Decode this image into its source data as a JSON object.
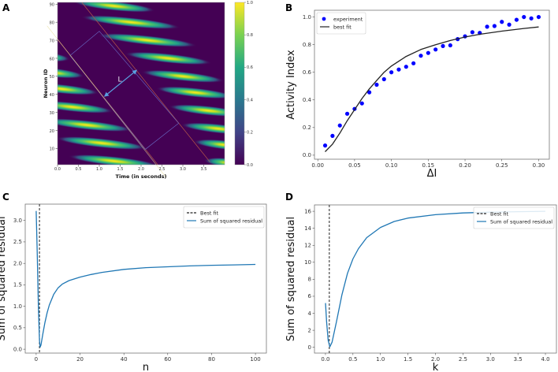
{
  "chart_data": [
    {
      "panel": "A",
      "type": "heatmap",
      "xlabel": "Time (in seconds)",
      "ylabel": "Neuron ID",
      "xlim": [
        0,
        4.0
      ],
      "ylim": [
        1,
        91
      ],
      "xticks": [
        "0.0",
        "0.5",
        "1.0",
        "1.5",
        "2.0",
        "2.5",
        "3.0",
        "3.5"
      ],
      "xtick_values": [
        0,
        0.5,
        1,
        1.5,
        2,
        2.5,
        3,
        3.5
      ],
      "yticks": [
        "10",
        "20",
        "30",
        "40",
        "50",
        "60",
        "70",
        "80",
        "90"
      ],
      "ytick_values": [
        10,
        20,
        30,
        40,
        50,
        60,
        70,
        80,
        90
      ],
      "colorbar": {
        "ticks": [
          "0.0",
          "0.2",
          "0.4",
          "0.6",
          "0.8",
          "1.0"
        ],
        "values": [
          0,
          0.2,
          0.4,
          0.6,
          0.8,
          1.0
        ],
        "range": [
          0,
          1
        ]
      },
      "activity_bands": [
        {
          "time": 1.35,
          "neuron": 89,
          "half_width": 1.0
        },
        {
          "time": 1.75,
          "neuron": 80,
          "half_width": 1.2
        },
        {
          "time": 2.15,
          "neuron": 70,
          "half_width": 1.2
        },
        {
          "time": 2.65,
          "neuron": 60,
          "half_width": 1.05
        },
        {
          "time": 3.0,
          "neuron": 50,
          "half_width": 1.0
        },
        {
          "time": 3.3,
          "neuron": 41,
          "half_width": 0.95
        },
        {
          "time": 3.6,
          "neuron": 31,
          "half_width": 0.95
        },
        {
          "time": 3.85,
          "neuron": 21,
          "half_width": 0.9
        },
        {
          "time": 4.0,
          "neuron": 12,
          "half_width": 0.75
        },
        {
          "time": 4.1,
          "neuron": 2,
          "half_width": 0.6
        },
        {
          "time": -0.3,
          "neuron": 61,
          "half_width": 0.6
        },
        {
          "time": -0.1,
          "neuron": 52,
          "half_width": 0.75
        },
        {
          "time": 0.1,
          "neuron": 43,
          "half_width": 0.9
        },
        {
          "time": 0.35,
          "neuron": 33,
          "half_width": 1.0
        },
        {
          "time": 0.7,
          "neuron": 23,
          "half_width": 1.1
        },
        {
          "time": 1.05,
          "neuron": 13,
          "half_width": 1.1
        },
        {
          "time": 1.35,
          "neuron": 3,
          "half_width": 1.1
        }
      ],
      "boundary_lines": [
        {
          "from": [
            0,
            70.5
          ],
          "to": [
            2.4,
            1
          ]
        },
        {
          "from": [
            0.58,
            91
          ],
          "to": [
            3.65,
            2.5
          ]
        }
      ],
      "guide_line": {
        "from": [
          -0.25,
          78
        ],
        "to": [
          2.6,
          -6
        ]
      },
      "rectangle": [
        [
          0.3,
          61.5
        ],
        [
          1.0,
          75
        ],
        [
          2.9,
          24
        ],
        [
          2.1,
          9.5
        ]
      ],
      "arrow": {
        "from": [
          1.13,
          39
        ],
        "to": [
          1.89,
          53.3
        ],
        "label": "L",
        "label_at": [
          1.49,
          47
        ]
      }
    },
    {
      "panel": "B",
      "type": "scatter",
      "xlabel": "ΔI",
      "ylabel": "Activity Index",
      "xlim": [
        -0.0045,
        0.3145
      ],
      "ylim": [
        -0.029,
        1.049
      ],
      "xticks": [
        "0.00",
        "0.05",
        "0.10",
        "0.15",
        "0.20",
        "0.25",
        "0.30"
      ],
      "xtick_values": [
        0,
        0.05,
        0.1,
        0.15,
        0.2,
        0.25,
        0.3
      ],
      "yticks": [
        "0.0",
        "0.2",
        "0.4",
        "0.6",
        "0.8",
        "1.0"
      ],
      "ytick_values": [
        0,
        0.2,
        0.4,
        0.6,
        0.8,
        1.0
      ],
      "legend_position": "top-left",
      "series": [
        {
          "name": "experiment",
          "kind": "scatter",
          "color": "#0000ff",
          "x": [
            0.01,
            0.02,
            0.03,
            0.04,
            0.05,
            0.06,
            0.07,
            0.08,
            0.09,
            0.1,
            0.11,
            0.12,
            0.13,
            0.14,
            0.15,
            0.16,
            0.17,
            0.18,
            0.19,
            0.2,
            0.21,
            0.22,
            0.23,
            0.24,
            0.25,
            0.26,
            0.27,
            0.28,
            0.29,
            0.3
          ],
          "y": [
            0.07,
            0.14,
            0.215,
            0.3,
            0.335,
            0.375,
            0.455,
            0.51,
            0.55,
            0.6,
            0.62,
            0.64,
            0.665,
            0.72,
            0.74,
            0.765,
            0.79,
            0.795,
            0.84,
            0.86,
            0.89,
            0.885,
            0.93,
            0.935,
            0.965,
            0.945,
            0.98,
            1.0,
            0.99,
            1.0
          ]
        },
        {
          "name": "best fit",
          "kind": "line",
          "color": "#222222",
          "x": [
            0.01,
            0.02,
            0.03,
            0.04,
            0.05,
            0.06,
            0.07,
            0.08,
            0.09,
            0.1,
            0.12,
            0.14,
            0.16,
            0.18,
            0.2,
            0.22,
            0.25,
            0.28,
            0.3
          ],
          "y": [
            0.025,
            0.08,
            0.16,
            0.25,
            0.33,
            0.41,
            0.48,
            0.54,
            0.6,
            0.645,
            0.715,
            0.765,
            0.8,
            0.83,
            0.855,
            0.875,
            0.898,
            0.917,
            0.928
          ]
        }
      ]
    },
    {
      "panel": "C",
      "type": "line",
      "xlabel": "n",
      "ylabel": "Sum of squared residual",
      "xlim": [
        -5,
        105
      ],
      "ylim": [
        -0.09,
        3.38
      ],
      "xticks": [
        "0",
        "20",
        "40",
        "60",
        "80",
        "100"
      ],
      "xtick_values": [
        0,
        20,
        40,
        60,
        80,
        100
      ],
      "yticks": [
        "0.0",
        "0.5",
        "1.0",
        "1.5",
        "2.0",
        "2.5",
        "3.0"
      ],
      "ytick_values": [
        0,
        0.5,
        1,
        1.5,
        2,
        2.5,
        3
      ],
      "legend_position": "top-right",
      "best_fit": {
        "name": "Best fit",
        "x": 1.5,
        "color": "#222222"
      },
      "series": [
        {
          "name": "Sum of squared residual",
          "kind": "line",
          "color": "#1f77b4",
          "x": [
            0,
            0.5,
            1,
            1.5,
            1.8,
            2.2,
            3,
            4,
            5,
            6,
            8,
            10,
            12,
            15,
            20,
            25,
            30,
            40,
            50,
            60,
            70,
            80,
            90,
            100
          ],
          "y": [
            3.22,
            2.2,
            1.0,
            0.2,
            0.05,
            0.1,
            0.35,
            0.62,
            0.85,
            1.03,
            1.28,
            1.43,
            1.52,
            1.6,
            1.68,
            1.74,
            1.79,
            1.86,
            1.9,
            1.92,
            1.94,
            1.955,
            1.965,
            1.975
          ]
        }
      ]
    },
    {
      "panel": "D",
      "type": "line",
      "xlabel": "k",
      "ylabel": "Sum of squared residual",
      "xlim": [
        -0.2,
        4.2
      ],
      "ylim": [
        -0.68,
        16.75
      ],
      "xticks": [
        "0.0",
        "0.5",
        "1.0",
        "1.5",
        "2.0",
        "2.5",
        "3.0",
        "3.5",
        "4.0"
      ],
      "xtick_values": [
        0,
        0.5,
        1,
        1.5,
        2,
        2.5,
        3,
        3.5,
        4
      ],
      "yticks": [
        "0",
        "2",
        "4",
        "6",
        "8",
        "10",
        "12",
        "14",
        "16"
      ],
      "ytick_values": [
        0,
        2,
        4,
        6,
        8,
        10,
        12,
        14,
        16
      ],
      "legend_position": "top-right",
      "best_fit": {
        "name": "Best fit",
        "x": 0.07,
        "color": "#222222"
      },
      "series": [
        {
          "name": "Sum of squared residual",
          "kind": "line",
          "color": "#1f77b4",
          "x": [
            0,
            0.02,
            0.05,
            0.08,
            0.12,
            0.2,
            0.3,
            0.4,
            0.5,
            0.6,
            0.75,
            1.0,
            1.25,
            1.5,
            2.0,
            2.5,
            3.0,
            3.5,
            4.0
          ],
          "y": [
            5.2,
            3,
            0.8,
            0.05,
            0.6,
            3,
            6.2,
            8.7,
            10.4,
            11.6,
            12.9,
            14.1,
            14.8,
            15.2,
            15.6,
            15.8,
            15.9,
            15.95,
            16.0
          ]
        }
      ]
    }
  ]
}
